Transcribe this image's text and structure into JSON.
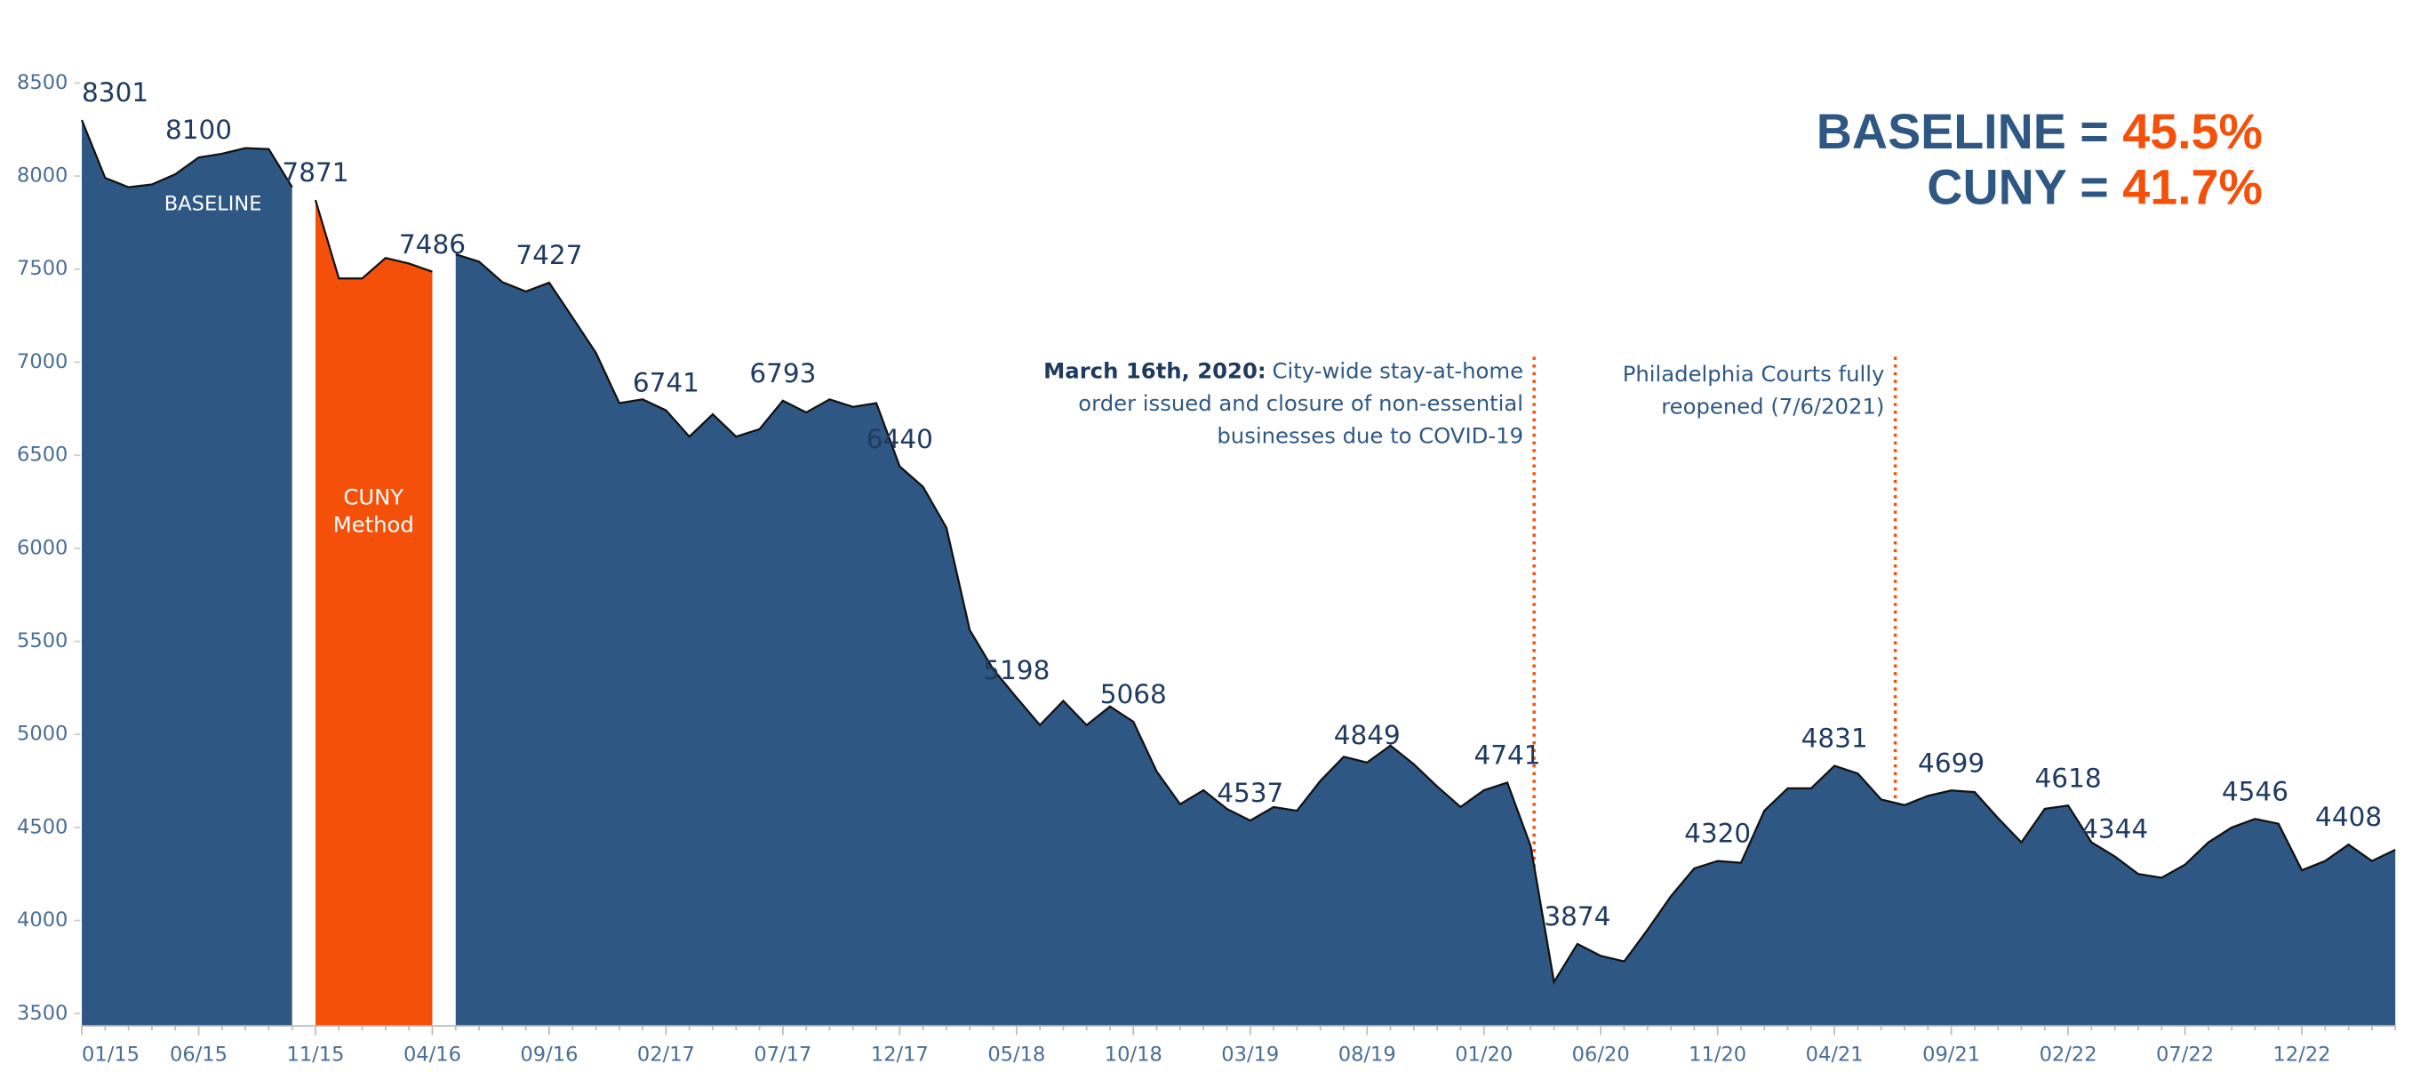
{
  "chart_data": {
    "type": "area",
    "categories": [
      "01/15",
      null,
      null,
      null,
      null,
      "06/15",
      null,
      null,
      null,
      null,
      "11/15",
      null,
      null,
      null,
      null,
      "04/16",
      null,
      null,
      null,
      null,
      "09/16",
      null,
      null,
      null,
      null,
      "02/17",
      null,
      null,
      null,
      null,
      "07/17",
      null,
      null,
      null,
      null,
      "12/17",
      null,
      null,
      null,
      null,
      "05/18",
      null,
      null,
      null,
      null,
      "10/18",
      null,
      null,
      null,
      null,
      "03/19",
      null,
      null,
      null,
      null,
      "08/19",
      null,
      null,
      null,
      null,
      "01/20",
      null,
      null,
      null,
      null,
      "06/20",
      null,
      null,
      null,
      null,
      "11/20",
      null,
      null,
      null,
      null,
      "04/21",
      null,
      null,
      null,
      null,
      "09/21",
      null,
      null,
      null,
      null,
      "02/22",
      null,
      null,
      null,
      null,
      "07/22",
      null,
      null,
      null,
      null,
      "12/22",
      null,
      null,
      null,
      null
    ],
    "series": [
      {
        "color": "#2e5883",
        "values": [
          8301,
          7990,
          7940,
          7955,
          8010,
          8100,
          8120,
          8150,
          8145,
          7940,
          null,
          null,
          null,
          null,
          null,
          null,
          null,
          null,
          null,
          null,
          null,
          null,
          null,
          null,
          null,
          null,
          null,
          null,
          null,
          null,
          null,
          null,
          null,
          null,
          null,
          null,
          null,
          null,
          null,
          null,
          null,
          null,
          null,
          null,
          null,
          null,
          null,
          null,
          null,
          null,
          null,
          null,
          null,
          null,
          null,
          null,
          null,
          null,
          null,
          null,
          null,
          null,
          null,
          null,
          null,
          null,
          null,
          null,
          null,
          null,
          null,
          null,
          null,
          null,
          null,
          null,
          null,
          null,
          null,
          null,
          null,
          null,
          null,
          null,
          null,
          null,
          null,
          null,
          null,
          null,
          null,
          null,
          null,
          null,
          null,
          null,
          null,
          null,
          null,
          null
        ],
        "value_labels": [
          "8301",
          null,
          null,
          null,
          null,
          "8100",
          null,
          null,
          null,
          null,
          null,
          null,
          null,
          null,
          null,
          null,
          null,
          null,
          null,
          null,
          null,
          null,
          null,
          null,
          null,
          null,
          null,
          null,
          null,
          null,
          null,
          null,
          null,
          null,
          null,
          null,
          null,
          null,
          null,
          null,
          null,
          null,
          null,
          null,
          null,
          null,
          null,
          null,
          null,
          null,
          null,
          null,
          null,
          null,
          null,
          null,
          null,
          null,
          null,
          null,
          null,
          null,
          null,
          null,
          null,
          null,
          null,
          null,
          null,
          null,
          null,
          null,
          null,
          null,
          null,
          null,
          null,
          null,
          null,
          null,
          null,
          null,
          null,
          null,
          null,
          null,
          null,
          null,
          null,
          null,
          null,
          null,
          null,
          null,
          null,
          null,
          null,
          null,
          null,
          null
        ]
      },
      {
        "color": "#f5500a",
        "values": [
          null,
          null,
          null,
          null,
          null,
          null,
          null,
          null,
          null,
          null,
          7871,
          7450,
          7450,
          7560,
          7530,
          7486,
          null,
          null,
          null,
          null,
          null,
          null,
          null,
          null,
          null,
          null,
          null,
          null,
          null,
          null,
          null,
          null,
          null,
          null,
          null,
          null,
          null,
          null,
          null,
          null,
          null,
          null,
          null,
          null,
          null,
          null,
          null,
          null,
          null,
          null,
          null,
          null,
          null,
          null,
          null,
          null,
          null,
          null,
          null,
          null,
          null,
          null,
          null,
          null,
          null,
          null,
          null,
          null,
          null,
          null,
          null,
          null,
          null,
          null,
          null,
          null,
          null,
          null,
          null,
          null,
          null,
          null,
          null,
          null,
          null,
          null,
          null,
          null,
          null,
          null,
          null,
          null,
          null,
          null,
          null,
          null,
          null,
          null,
          null,
          null
        ],
        "value_labels": [
          null,
          null,
          null,
          null,
          null,
          null,
          null,
          null,
          null,
          null,
          "7871",
          null,
          null,
          null,
          null,
          "7486",
          null,
          null,
          null,
          null,
          null,
          null,
          null,
          null,
          null,
          null,
          null,
          null,
          null,
          null,
          null,
          null,
          null,
          null,
          null,
          null,
          null,
          null,
          null,
          null,
          null,
          null,
          null,
          null,
          null,
          null,
          null,
          null,
          null,
          null,
          null,
          null,
          null,
          null,
          null,
          null,
          null,
          null,
          null,
          null,
          null,
          null,
          null,
          null,
          null,
          null,
          null,
          null,
          null,
          null,
          null,
          null,
          null,
          null,
          null,
          null,
          null,
          null,
          null,
          null,
          null,
          null,
          null,
          null,
          null,
          null,
          null,
          null,
          null,
          null,
          null,
          null,
          null,
          null,
          null,
          null,
          null,
          null,
          null,
          null
        ]
      },
      {
        "color": "#2e5883",
        "values": [
          null,
          null,
          null,
          null,
          null,
          null,
          null,
          null,
          null,
          null,
          null,
          null,
          null,
          null,
          null,
          null,
          7580,
          7540,
          7430,
          7380,
          7427,
          7240,
          7050,
          6780,
          6800,
          6741,
          6600,
          6720,
          6600,
          6640,
          6793,
          6730,
          6800,
          6760,
          6780,
          6440,
          6330,
          6110,
          5560,
          5350,
          5198,
          5050,
          5180,
          5050,
          5150,
          5068,
          4800,
          4625,
          4700,
          4600,
          4537,
          4610,
          4590,
          4750,
          4880,
          4849,
          4940,
          4840,
          4720,
          4610,
          4700,
          4741,
          4400,
          3670,
          3874,
          3810,
          3780,
          3950,
          4130,
          4280,
          4320,
          4310,
          4590,
          4710,
          4710,
          4831,
          4790,
          4650,
          4620,
          4670,
          4699,
          4690,
          4550,
          4420,
          4600,
          4618,
          4420,
          4344,
          4250,
          4230,
          4300,
          4420,
          4500,
          4546,
          4520,
          4270,
          4320,
          4408,
          4320,
          4380
        ],
        "value_labels": [
          null,
          null,
          null,
          null,
          null,
          null,
          null,
          null,
          null,
          null,
          null,
          null,
          null,
          null,
          null,
          null,
          null,
          null,
          null,
          null,
          "7427",
          null,
          null,
          null,
          null,
          "6741",
          null,
          null,
          null,
          null,
          "6793",
          null,
          null,
          null,
          null,
          "6440",
          null,
          null,
          null,
          null,
          "5198",
          null,
          null,
          null,
          null,
          "5068",
          null,
          null,
          null,
          null,
          "4537",
          null,
          null,
          null,
          null,
          "4849",
          null,
          null,
          null,
          null,
          null,
          "4741",
          null,
          null,
          "3874",
          null,
          null,
          null,
          null,
          null,
          "4320",
          null,
          null,
          null,
          null,
          "4831",
          null,
          null,
          null,
          null,
          "4699",
          null,
          null,
          null,
          null,
          "4618",
          null,
          "4344",
          null,
          null,
          null,
          null,
          null,
          "4546",
          null,
          null,
          null,
          "4408",
          null,
          null
        ]
      }
    ],
    "ylim": [
      3434,
      8946
    ],
    "yticks": [
      3500,
      4000,
      4500,
      5000,
      5500,
      6000,
      6500,
      7000,
      7500,
      8000,
      8500
    ],
    "area_labels": [
      {
        "text": "BASELINE"
      },
      {
        "lines": [
          "CUNY",
          "Method"
        ]
      }
    ],
    "summary": [
      {
        "label": "BASELINE =",
        "value": "45.5%"
      },
      {
        "label": "CUNY =",
        "value": "41.7%"
      }
    ],
    "annotations": [
      {
        "lead": "March 16th, 2020:",
        "lines": [
          "City-wide stay-at-home",
          "order issued and closure of non-essential",
          "businesses due to COVID-19"
        ]
      },
      {
        "lines": [
          "Philadelphia Courts fully",
          "reopened (7/6/2021)"
        ]
      }
    ]
  }
}
